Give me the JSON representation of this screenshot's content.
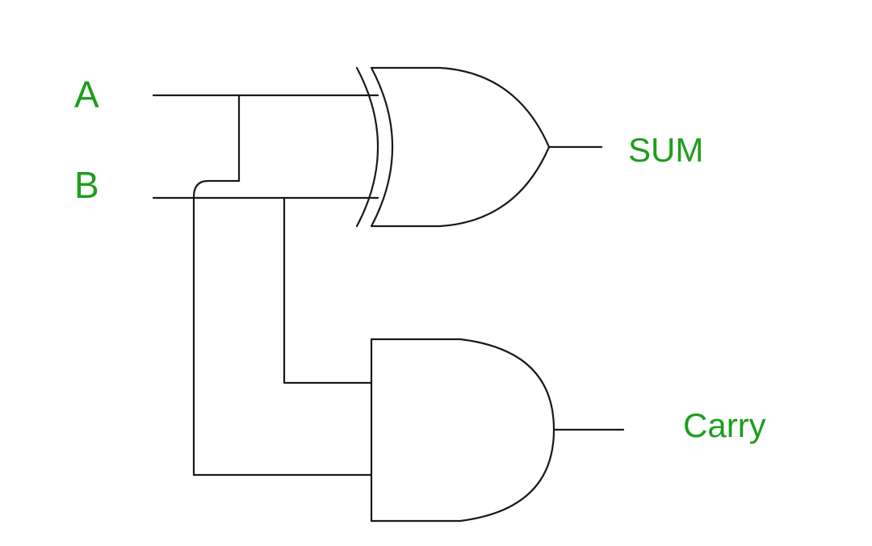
{
  "diagram": {
    "inputs": {
      "a": "A",
      "b": "B"
    },
    "outputs": {
      "sum": "SUM",
      "carry": "Carry"
    },
    "gates": {
      "xor": "XOR",
      "and": "AND"
    },
    "colors": {
      "label": "#1e9e1e",
      "line": "#1a1a1a",
      "background": "#ffffff"
    }
  }
}
